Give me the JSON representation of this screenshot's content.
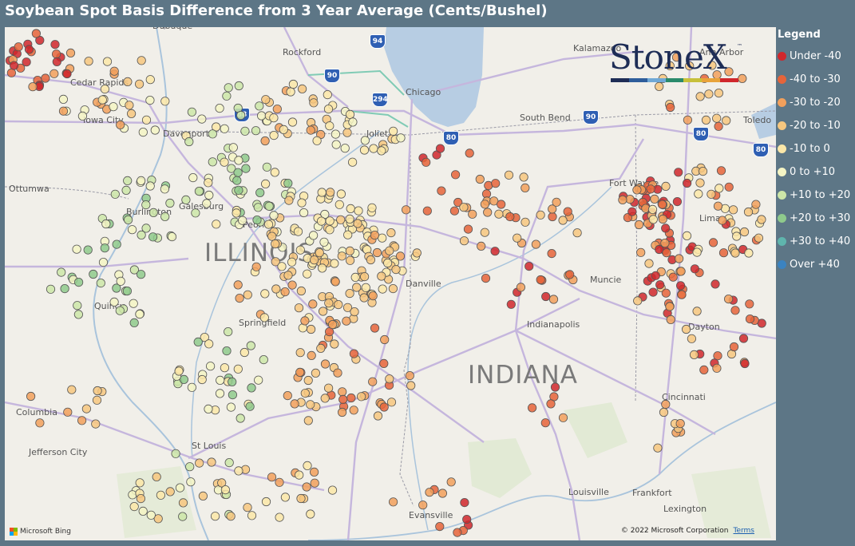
{
  "title": "Soybean Spot Basis Difference from 3 Year Average (Cents/Bushel)",
  "legend": {
    "title": "Legend",
    "items": [
      {
        "label": "Under -40",
        "color": "#d0272c"
      },
      {
        "label": "-40 to -30",
        "color": "#e6643a"
      },
      {
        "label": "-30 to -20",
        "color": "#f2a05c"
      },
      {
        "label": "-20 to -10",
        "color": "#f7c77f"
      },
      {
        "label": "-10 to 0",
        "color": "#fbe7a8"
      },
      {
        "label": "0 to +10",
        "color": "#f4f4c4"
      },
      {
        "label": "+10 to +20",
        "color": "#cde6a8"
      },
      {
        "label": "+20 to +30",
        "color": "#8fca8c"
      },
      {
        "label": "+30 to +40",
        "color": "#5fb5ad"
      },
      {
        "label": "Over +40",
        "color": "#3b83c0"
      }
    ]
  },
  "logo": {
    "text": "StoneX",
    "tm": "™",
    "bar_colors": [
      "#1e2d56",
      "#2e5d9b",
      "#6fa8d6",
      "#2a8a6b",
      "#c7c03a",
      "#e8a33a",
      "#d0272c"
    ]
  },
  "map": {
    "states": [
      {
        "name": "ILLINOIS",
        "x": 250,
        "y": 265
      },
      {
        "name": "INDIANA",
        "x": 580,
        "y": 418
      }
    ],
    "cities": [
      {
        "name": "Rockford",
        "x": 348,
        "y": 25
      },
      {
        "name": "Kalamazoo",
        "x": 712,
        "y": 20
      },
      {
        "name": "Ann Arbor",
        "x": 870,
        "y": 25
      },
      {
        "name": "Cedar Rapids",
        "x": 82,
        "y": 63
      },
      {
        "name": "Chicago",
        "x": 502,
        "y": 75
      },
      {
        "name": "Iowa City",
        "x": 98,
        "y": 110
      },
      {
        "name": "South Bend",
        "x": 645,
        "y": 107
      },
      {
        "name": "Toledo",
        "x": 925,
        "y": 110
      },
      {
        "name": "Davenport",
        "x": 198,
        "y": 127
      },
      {
        "name": "Joliet",
        "x": 453,
        "y": 127
      },
      {
        "name": "Fort Wayne",
        "x": 757,
        "y": 189
      },
      {
        "name": "Ottumwa",
        "x": 5,
        "y": 196
      },
      {
        "name": "Burlington",
        "x": 152,
        "y": 225
      },
      {
        "name": "Galesburg",
        "x": 218,
        "y": 218
      },
      {
        "name": "Peoria",
        "x": 298,
        "y": 241
      },
      {
        "name": "Lima",
        "x": 870,
        "y": 233
      },
      {
        "name": "Danville",
        "x": 502,
        "y": 315
      },
      {
        "name": "Muncie",
        "x": 733,
        "y": 310
      },
      {
        "name": "Quincy",
        "x": 112,
        "y": 343
      },
      {
        "name": "Springfield",
        "x": 293,
        "y": 364
      },
      {
        "name": "Indianapolis",
        "x": 654,
        "y": 366
      },
      {
        "name": "Dayton",
        "x": 856,
        "y": 369
      },
      {
        "name": "Cincinnati",
        "x": 823,
        "y": 457
      },
      {
        "name": "Columbia",
        "x": 14,
        "y": 476
      },
      {
        "name": "St Louis",
        "x": 234,
        "y": 518
      },
      {
        "name": "Jefferson City",
        "x": 30,
        "y": 526
      },
      {
        "name": "Louisville",
        "x": 706,
        "y": 576
      },
      {
        "name": "Frankfort",
        "x": 786,
        "y": 577
      },
      {
        "name": "Evansville",
        "x": 506,
        "y": 605
      },
      {
        "name": "Lexington",
        "x": 825,
        "y": 597
      },
      {
        "name": "Dubuque",
        "x": 185,
        "y": -8
      }
    ],
    "shields": [
      {
        "label": "94",
        "x": 457,
        "y": 9
      },
      {
        "label": "90",
        "x": 400,
        "y": 52
      },
      {
        "label": "294",
        "x": 460,
        "y": 82
      },
      {
        "label": "88",
        "x": 287,
        "y": 101
      },
      {
        "label": "80",
        "x": 549,
        "y": 130
      },
      {
        "label": "90",
        "x": 724,
        "y": 104
      },
      {
        "label": "80",
        "x": 862,
        "y": 125
      },
      {
        "label": "80",
        "x": 937,
        "y": 145
      }
    ]
  },
  "attribution": {
    "bing": "Microsoft Bing",
    "copyright": "© 2022 Microsoft Corporation",
    "terms": "Terms"
  }
}
